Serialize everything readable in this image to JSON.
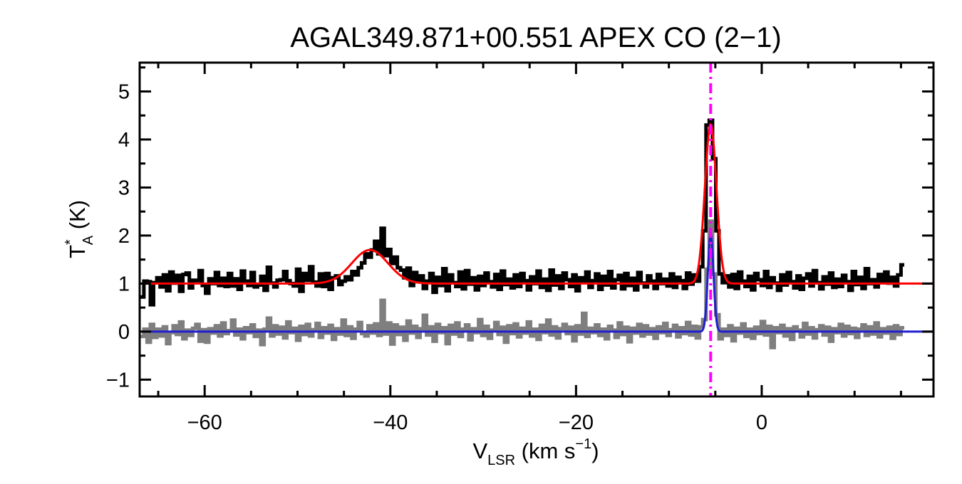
{
  "chart_data": {
    "type": "line",
    "title": "AGAL349.871+00.551   APEX CO (2−1)",
    "xlabel": {
      "main": "V",
      "sub": "LSR",
      "unit_pre": " (km s",
      "sup": "−1",
      "unit_post": ")"
    },
    "ylabel": {
      "main": "T",
      "sup": "*",
      "sub": "A",
      "unit": " (K)"
    },
    "xlim": [
      -67,
      18.5
    ],
    "ylim": [
      -1.35,
      5.6
    ],
    "xticks": [
      -60,
      -40,
      -20,
      0
    ],
    "xtick_labels": [
      "−60",
      "−40",
      "−20",
      "0"
    ],
    "yticks": [
      -1,
      0,
      1,
      2,
      3,
      4,
      5
    ],
    "ytick_labels": [
      "−1",
      "0",
      "1",
      "2",
      "3",
      "4",
      "5"
    ],
    "x_minor_step": 5,
    "y_minor_step": 0.5,
    "grid": false,
    "legend": "none",
    "vline": {
      "x": -5.5,
      "color": "#ff00ff",
      "style": "dash-dot"
    },
    "series": [
      {
        "role": "spectrum",
        "color": "#000000",
        "style": "steps",
        "x_start": -66.9,
        "x_step": 0.35,
        "values": [
          0.72,
          1.05,
          1.04,
          0.56,
          1.02,
          1.12,
          0.93,
          1.18,
          0.85,
          1.24,
          1.01,
          1.17,
          0.84,
          1.19,
          1.22,
          0.91,
          1.07,
          1.06,
          1.27,
          0.96,
          0.8,
          1.1,
          1.0,
          1.23,
          0.96,
          1.11,
          0.94,
          1.21,
          0.95,
          1.1,
          0.88,
          1.26,
          1.05,
          0.96,
          1.23,
          0.93,
          0.97,
          1.15,
          0.86,
          1.34,
          1.01,
          0.93,
          1.07,
          1.08,
          1.25,
          1.06,
          1.0,
          0.95,
          1.3,
          0.84,
          1.21,
          1.07,
          1.35,
          1.03,
          0.95,
          1.2,
          0.94,
          1.21,
          0.88,
          1.12,
          1.16,
          0.98,
          1.05,
          1.14,
          1.08,
          1.25,
          1.18,
          1.33,
          1.43,
          1.62,
          1.55,
          1.7,
          1.88,
          1.62,
          2.15,
          1.58,
          1.71,
          1.42,
          1.55,
          1.33,
          1.28,
          1.12,
          1.32,
          0.96,
          1.23,
          1.04,
          1.16,
          0.9,
          1.05,
          1.21,
          0.82,
          1.13,
          0.96,
          1.31,
          0.85,
          1.18,
          1.02,
          0.94,
          1.24,
          0.89,
          1.27,
          0.99,
          1.12,
          0.87,
          1.15,
          0.96,
          1.22,
          1.04,
          0.93,
          1.19,
          0.88,
          1.26,
          0.98,
          1.09,
          0.91,
          1.18,
          0.94,
          1.21,
          1.06,
          0.87,
          1.14,
          1.0,
          1.26,
          0.92,
          1.09,
          0.86,
          1.28,
          0.97,
          1.16,
          0.9,
          1.22,
          1.08,
          0.94,
          1.18,
          0.85,
          1.12,
          1.03,
          1.24,
          0.92,
          1.06,
          1.2,
          0.88,
          1.15,
          0.97,
          1.25,
          0.91,
          1.08,
          1.17,
          0.89,
          1.21,
          0.96,
          1.11,
          0.87,
          1.23,
          1.01,
          0.93,
          1.16,
          1.05,
          0.9,
          1.19,
          1.0,
          1.09,
          0.95,
          1.2,
          0.92,
          1.13,
          1.06,
          0.9,
          1.22,
          0.99,
          1.18,
          1.05,
          1.35,
          2.1,
          4.3,
          4.4,
          3.6,
          2.1,
          1.2,
          1.02,
          1.16,
          0.93,
          1.19,
          0.9,
          1.24,
          1.05,
          0.94,
          1.15,
          0.87,
          1.21,
          1.08,
          0.96,
          1.25,
          0.92,
          1.12,
          1.01,
          0.86,
          1.18,
          0.97,
          1.23,
          1.04,
          0.91,
          1.16,
          0.88,
          1.11,
          1.2,
          0.95,
          1.27,
          1.02,
          0.89,
          1.14,
          0.99,
          1.22,
          0.92,
          1.09,
          0.94,
          1.17,
          1.04,
          0.86,
          1.25,
          0.98,
          1.13,
          0.9,
          1.31,
          1.0,
          1.08,
          0.93,
          1.19,
          1.05,
          1.24,
          1.01,
          1.13,
          0.95,
          1.18,
          1.39
        ]
      },
      {
        "role": "residual",
        "color": "#7f7f7f",
        "style": "steps",
        "x_start": -66.9,
        "x_step": 0.35,
        "values": [
          -0.1,
          0.05,
          -0.22,
          0.15,
          -0.12,
          0.05,
          -0.09,
          0.1,
          -0.25,
          -0.02,
          0.12,
          -0.06,
          0.2,
          -0.15,
          0.03,
          -0.08,
          0.07,
          0.15,
          -0.2,
          0.04,
          -0.22,
          0.06,
          -0.03,
          0.12,
          -0.09,
          0.18,
          -0.04,
          0.02,
          0.24,
          -0.07,
          0.05,
          -0.15,
          0.08,
          -0.02,
          0.14,
          -0.1,
          0.03,
          -0.27,
          0.05,
          0.28,
          -0.09,
          0.12,
          -0.05,
          0.09,
          -0.13,
          0.2,
          -0.02,
          0.07,
          -0.18,
          0.11,
          -0.06,
          0.15,
          -0.09,
          0.04,
          0.17,
          -0.12,
          0.08,
          -0.03,
          0.13,
          -0.16,
          0.06,
          -0.05,
          0.24,
          -0.08,
          0.1,
          -0.14,
          0.05,
          0.19,
          -0.04,
          -0.09,
          0.12,
          -0.03,
          0.16,
          -0.08,
          0.65,
          -0.05,
          0.18,
          -0.26,
          0.14,
          -0.06,
          0.09,
          -0.18,
          0.22,
          -0.03,
          0.11,
          -0.12,
          0.06,
          0.34,
          -0.07,
          0.1,
          -0.2,
          0.15,
          -0.02,
          0.08,
          -0.25,
          0.13,
          -0.05,
          0.18,
          -0.1,
          0.05,
          0.14,
          -0.17,
          0.06,
          -0.02,
          0.25,
          -0.08,
          0.11,
          -0.14,
          0.03,
          0.19,
          -0.06,
          0.09,
          -0.22,
          0.12,
          -0.04,
          0.16,
          -0.11,
          0.07,
          -0.03,
          0.2,
          -0.09,
          0.05,
          -0.16,
          0.13,
          -0.02,
          0.24,
          -0.07,
          0.1,
          -0.13,
          0.06,
          0.15,
          -0.04,
          0.09,
          -0.19,
          0.12,
          -0.05,
          0.38,
          -0.1,
          0.07,
          -0.02,
          0.14,
          -0.08,
          0.05,
          -0.15,
          0.11,
          0.03,
          -0.12,
          0.18,
          -0.06,
          0.09,
          -0.21,
          0.07,
          -0.03,
          0.15,
          -0.09,
          0.12,
          -0.05,
          0.06,
          -0.14,
          0.1,
          -0.02,
          0.17,
          -0.08,
          0.04,
          0.13,
          -0.11,
          0.08,
          -0.04,
          0.19,
          -0.07,
          0.11,
          -0.13,
          0.1,
          0.25,
          1.3,
          2.3,
          1.2,
          0.35,
          -0.15,
          0.05,
          -0.08,
          0.12,
          -0.19,
          0.07,
          -0.03,
          0.16,
          -0.1,
          0.05,
          -0.14,
          0.09,
          -0.04,
          0.21,
          -0.07,
          0.11,
          -0.33,
          0.08,
          -0.02,
          0.13,
          -0.09,
          0.06,
          -0.16,
          0.1,
          0.03,
          -0.11,
          0.17,
          -0.05,
          0.08,
          -0.13,
          0.04,
          0.12,
          -0.07,
          0.09,
          -0.2,
          0.06,
          -0.02,
          0.15,
          -0.09,
          0.11,
          -0.04,
          0.07,
          -0.12,
          0.05,
          0.14,
          -0.08,
          0.1,
          -0.05,
          0.18,
          -0.11,
          0.06,
          -0.03,
          0.09,
          -0.14,
          0.12,
          -0.06,
          0.08
        ]
      },
      {
        "role": "fit",
        "color": "#ff0000",
        "style": "gaussians",
        "baseline": 1.0,
        "components": [
          {
            "amp": 0.7,
            "center": -42.2,
            "sigma": 1.95
          },
          {
            "amp": 3.32,
            "center": -5.5,
            "sigma": 0.62
          }
        ]
      },
      {
        "role": "residual-fit",
        "color": "#1f1fcf",
        "style": "gaussians",
        "baseline": 0.0,
        "components": [
          {
            "amp": 2.05,
            "center": -5.5,
            "sigma": 0.3
          }
        ]
      }
    ]
  }
}
